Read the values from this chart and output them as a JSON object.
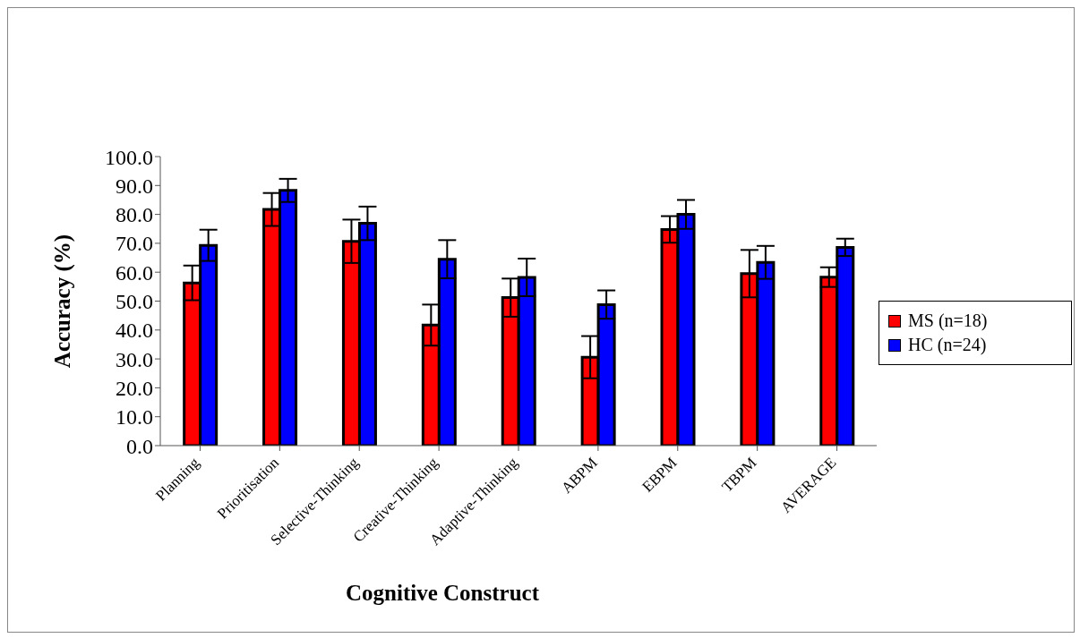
{
  "chart_data": {
    "type": "bar",
    "xlabel": "Cognitive Construct",
    "ylabel": "Accuracy (%)",
    "categories": [
      "Planning",
      "Prioritisation",
      "Selective-Thinking",
      "Creative-Thinking",
      "Adaptive-Thinking",
      "ABPM",
      "EBPM",
      "TBPM",
      "AVERAGE"
    ],
    "series": [
      {
        "name": "MS (n=18)",
        "color": "#ff0000",
        "values": [
          56.3,
          81.7,
          70.7,
          41.7,
          51.2,
          30.6,
          74.8,
          59.5,
          58.3
        ],
        "errors": [
          6.0,
          5.7,
          7.5,
          7.1,
          6.6,
          7.3,
          4.6,
          8.2,
          3.4
        ]
      },
      {
        "name": "HC (n=24)",
        "color": "#0000ff",
        "values": [
          69.3,
          88.3,
          76.9,
          64.5,
          58.2,
          48.8,
          80.0,
          63.4,
          68.6
        ],
        "errors": [
          5.4,
          4.0,
          5.8,
          6.6,
          6.5,
          4.9,
          5.0,
          5.7,
          3.0
        ]
      }
    ],
    "ylim": [
      0,
      100
    ],
    "yticks": [
      {
        "value": 0,
        "label": "0.0"
      },
      {
        "value": 10,
        "label": "10.0"
      },
      {
        "value": 20,
        "label": "20.0"
      },
      {
        "value": 30,
        "label": "30.0"
      },
      {
        "value": 40,
        "label": "40.0"
      },
      {
        "value": 50,
        "label": "50.0"
      },
      {
        "value": 60,
        "label": "60.0"
      },
      {
        "value": 70,
        "label": "70.0"
      },
      {
        "value": 80,
        "label": "80.0"
      },
      {
        "value": 90,
        "label": "90.0"
      },
      {
        "value": 100,
        "label": "100.0"
      }
    ],
    "grid": false,
    "legend": "right"
  }
}
